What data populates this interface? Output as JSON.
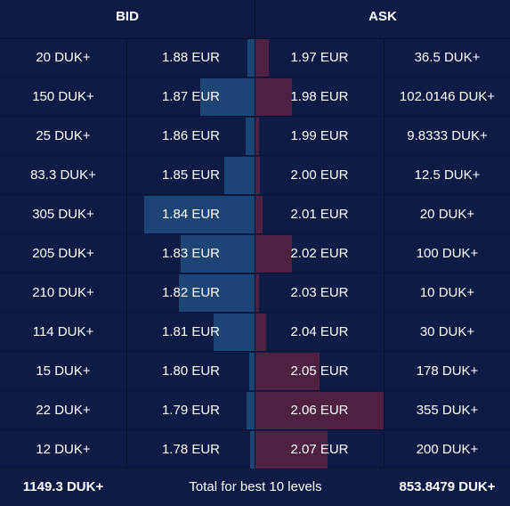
{
  "header": {
    "bid_label": "BID",
    "ask_label": "ASK"
  },
  "rows": [
    {
      "bid_qty": "20 DUK+",
      "bid_price": "1.88 EUR",
      "ask_price": "1.97 EUR",
      "ask_qty": "36.5 DUK+"
    },
    {
      "bid_qty": "150 DUK+",
      "bid_price": "1.87 EUR",
      "ask_price": "1.98 EUR",
      "ask_qty": "102.0146 DUK+"
    },
    {
      "bid_qty": "25 DUK+",
      "bid_price": "1.86 EUR",
      "ask_price": "1.99 EUR",
      "ask_qty": "9.8333 DUK+"
    },
    {
      "bid_qty": "83.3 DUK+",
      "bid_price": "1.85 EUR",
      "ask_price": "2.00 EUR",
      "ask_qty": "12.5 DUK+"
    },
    {
      "bid_qty": "305 DUK+",
      "bid_price": "1.84 EUR",
      "ask_price": "2.01 EUR",
      "ask_qty": "20 DUK+"
    },
    {
      "bid_qty": "205 DUK+",
      "bid_price": "1.83 EUR",
      "ask_price": "2.02 EUR",
      "ask_qty": "100 DUK+"
    },
    {
      "bid_qty": "210 DUK+",
      "bid_price": "1.82 EUR",
      "ask_price": "2.03 EUR",
      "ask_qty": "10 DUK+"
    },
    {
      "bid_qty": "114 DUK+",
      "bid_price": "1.81 EUR",
      "ask_price": "2.04 EUR",
      "ask_qty": "30 DUK+"
    },
    {
      "bid_qty": "15 DUK+",
      "bid_price": "1.80 EUR",
      "ask_price": "2.05 EUR",
      "ask_qty": "178 DUK+"
    },
    {
      "bid_qty": "22 DUK+",
      "bid_price": "1.79 EUR",
      "ask_price": "2.06 EUR",
      "ask_qty": "355 DUK+"
    },
    {
      "bid_qty": "12 DUK+",
      "bid_price": "1.78 EUR",
      "ask_price": "2.07 EUR",
      "ask_qty": "200 DUK+"
    }
  ],
  "depth": {
    "bid": [
      20,
      150,
      25,
      83.3,
      305,
      205,
      210,
      114,
      15,
      22,
      12
    ],
    "ask": [
      36.5,
      102.0146,
      9.8333,
      12.5,
      20,
      100,
      10,
      30,
      178,
      355,
      200
    ],
    "max": 355
  },
  "footer": {
    "bid_total": "1149.3 DUK+",
    "label": "Total for best 10 levels",
    "ask_total": "853.8479 DUK+"
  },
  "colors": {
    "bid_bar": "#1c4474",
    "ask_bar": "#4e2041",
    "background": "#0e1b45"
  }
}
